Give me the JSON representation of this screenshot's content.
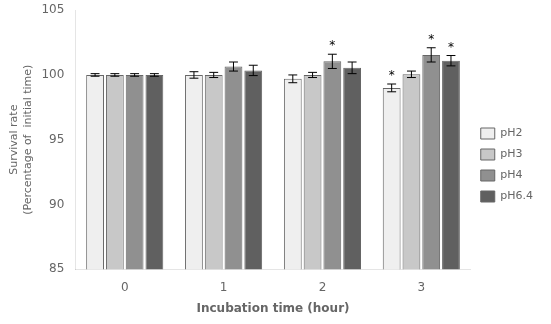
{
  "chart_data": {
    "type": "bar",
    "categories": [
      "0",
      "1",
      "2",
      "3"
    ],
    "series": [
      {
        "name": "pH2",
        "color": "#efefef",
        "values": [
          100.0,
          100.0,
          99.7,
          99.0
        ],
        "errors": [
          0.1,
          0.25,
          0.3,
          0.3
        ]
      },
      {
        "name": "pH3",
        "color": "#c8c8c8",
        "values": [
          100.0,
          100.0,
          100.0,
          100.05
        ],
        "errors": [
          0.1,
          0.2,
          0.2,
          0.25
        ]
      },
      {
        "name": "pH4",
        "color": "#909090",
        "values": [
          100.0,
          100.65,
          101.05,
          101.55
        ],
        "errors": [
          0.1,
          0.35,
          0.55,
          0.55
        ]
      },
      {
        "name": "pH6.4",
        "color": "#606060",
        "values": [
          100.0,
          100.35,
          100.55,
          101.1
        ],
        "errors": [
          0.1,
          0.4,
          0.45,
          0.4
        ]
      }
    ],
    "annotations": [
      {
        "category": "2",
        "series": "pH4",
        "text": "*"
      },
      {
        "category": "3",
        "series": "pH2",
        "text": "*"
      },
      {
        "category": "3",
        "series": "pH4",
        "text": "*"
      },
      {
        "category": "3",
        "series": "pH6.4",
        "text": "*"
      }
    ],
    "ylabel": [
      "Survival rate",
      "(Percentage of  initial time)"
    ],
    "xlabel": "Incubation time (hour)",
    "ylim": [
      85,
      105
    ],
    "yticks": [
      85,
      90,
      95,
      100,
      105
    ],
    "grid": false,
    "legend": "right"
  }
}
